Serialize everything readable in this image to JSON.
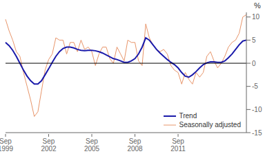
{
  "chart_data": {
    "type": "line",
    "ylabel": "%",
    "categories": [
      "Sep\n1999",
      null,
      null,
      null,
      null,
      null,
      null,
      null,
      null,
      null,
      null,
      null,
      "Sep\n2002",
      null,
      null,
      null,
      null,
      null,
      null,
      null,
      null,
      null,
      null,
      null,
      "Sep\n2005",
      null,
      null,
      null,
      null,
      null,
      null,
      null,
      null,
      null,
      null,
      null,
      "Sep\n2008",
      null,
      null,
      null,
      null,
      null,
      null,
      null,
      null,
      null,
      null,
      null,
      "Sep\n2011",
      null,
      null,
      null,
      null,
      null,
      null,
      null,
      null,
      null,
      null,
      null,
      null,
      null,
      null,
      null,
      null,
      null,
      null,
      null
    ],
    "series": [
      {
        "name": "Seasonally adjusted",
        "color": "#E8956A",
        "values": [
          9.5,
          7.0,
          5.0,
          2.5,
          1.5,
          -2.0,
          -5.0,
          -8.0,
          -11.5,
          -10.5,
          -6.0,
          -1.5,
          0.8,
          2.0,
          5.5,
          5.0,
          5.0,
          2.0,
          4.5,
          4.5,
          2.5,
          5.0,
          3.0,
          3.5,
          2.5,
          -0.5,
          2.0,
          3.5,
          3.5,
          1.0,
          0.0,
          3.5,
          2.0,
          0.5,
          5.0,
          4.5,
          4.5,
          0.5,
          -0.5,
          8.5,
          5.5,
          4.0,
          3.0,
          2.5,
          3.0,
          2.0,
          -0.5,
          -1.5,
          -2.0,
          -4.5,
          -2.0,
          -3.5,
          -4.5,
          -2.0,
          -3.0,
          -2.0,
          1.5,
          2.5,
          0.5,
          -1.0,
          0.0,
          1.5,
          3.5,
          4.5,
          5.0,
          6.5,
          10.0,
          10.5
        ]
      },
      {
        "name": "Trend",
        "color": "#1a1aaa",
        "values": [
          4.5,
          3.8,
          2.8,
          1.5,
          0.0,
          -1.5,
          -2.8,
          -3.8,
          -4.5,
          -4.5,
          -3.8,
          -2.5,
          -1.2,
          0.2,
          1.5,
          2.5,
          3.2,
          3.5,
          3.5,
          3.3,
          3.0,
          2.8,
          2.7,
          2.8,
          2.8,
          2.7,
          2.5,
          2.2,
          1.8,
          1.4,
          1.0,
          0.8,
          0.5,
          0.2,
          0.2,
          0.5,
          1.0,
          2.0,
          3.5,
          5.5,
          5.0,
          4.0,
          3.0,
          2.2,
          1.5,
          0.8,
          0.2,
          -0.3,
          -1.0,
          -2.0,
          -2.8,
          -3.0,
          -2.5,
          -1.8,
          -1.0,
          -0.3,
          0.1,
          0.3,
          0.3,
          0.2,
          0.2,
          0.5,
          1.2,
          2.0,
          3.0,
          4.0,
          4.8,
          5.0
        ]
      }
    ],
    "ylim": [
      -15,
      11
    ],
    "yticks": [
      -15,
      -10,
      -5,
      0,
      5,
      10
    ],
    "grid": false,
    "legend": "lower right"
  }
}
